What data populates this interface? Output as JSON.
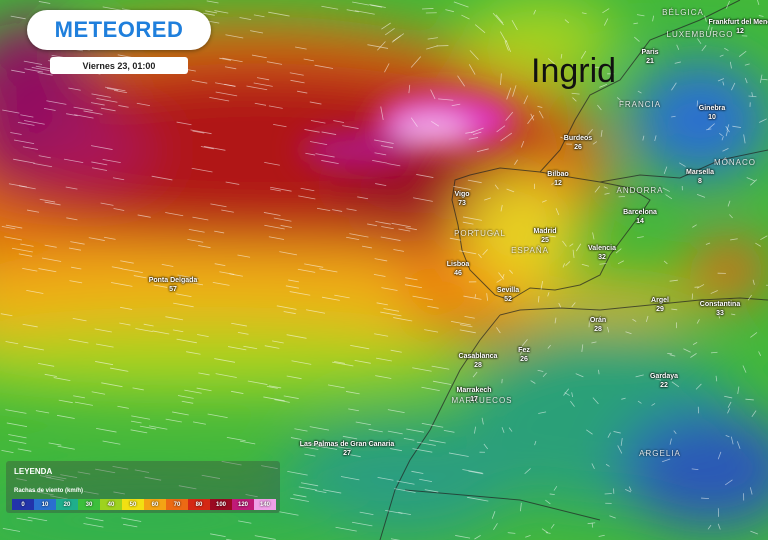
{
  "logo": "METEORED",
  "date": "Viernes 23, 01:00",
  "storm": "Ingrid",
  "countries": [
    "BÉLGICA",
    "LUXEMBURGO",
    "FRANCIA",
    "ANDORRA",
    "MÓNACO",
    "PORTUGAL",
    "ESPAÑA",
    "MARRUECOS",
    "ARGELIA"
  ],
  "cities": [
    {
      "name": "Frankfurt del Meno",
      "value": 12
    },
    {
      "name": "Paris",
      "value": 21
    },
    {
      "name": "Ginebra",
      "value": 10
    },
    {
      "name": "Burdeos",
      "value": 26
    },
    {
      "name": "Marsella",
      "value": 8
    },
    {
      "name": "Bilbao",
      "value": 12
    },
    {
      "name": "Vigo",
      "value": 73
    },
    {
      "name": "Barcelona",
      "value": 14
    },
    {
      "name": "Madrid",
      "value": 25
    },
    {
      "name": "Valencia",
      "value": 32
    },
    {
      "name": "Lisboa",
      "value": 46
    },
    {
      "name": "Sevilla",
      "value": 52
    },
    {
      "name": "Ponta Delgada",
      "value": 57
    },
    {
      "name": "Argel",
      "value": 29
    },
    {
      "name": "Constantina",
      "value": 33
    },
    {
      "name": "Orán",
      "value": 28
    },
    {
      "name": "Fez",
      "value": 26
    },
    {
      "name": "Casablanca",
      "value": 28
    },
    {
      "name": "Marrakech",
      "value": 17
    },
    {
      "name": "Gardaya",
      "value": 22
    },
    {
      "name": "Las Palmas de Gran Canaria",
      "value": 27
    }
  ],
  "legend": {
    "title": "LEYENDA",
    "subtitle": "Rachas de viento (km/h)",
    "scale": [
      0,
      10,
      20,
      30,
      40,
      50,
      60,
      70,
      80,
      100,
      120,
      140
    ],
    "colors": [
      "#2233aa",
      "#2a6fd0",
      "#1fae8c",
      "#3cbf3c",
      "#9ed21e",
      "#f2e012",
      "#f4a414",
      "#ec6a14",
      "#d42814",
      "#9a0a22",
      "#c01a78",
      "#f0a0e8"
    ]
  }
}
